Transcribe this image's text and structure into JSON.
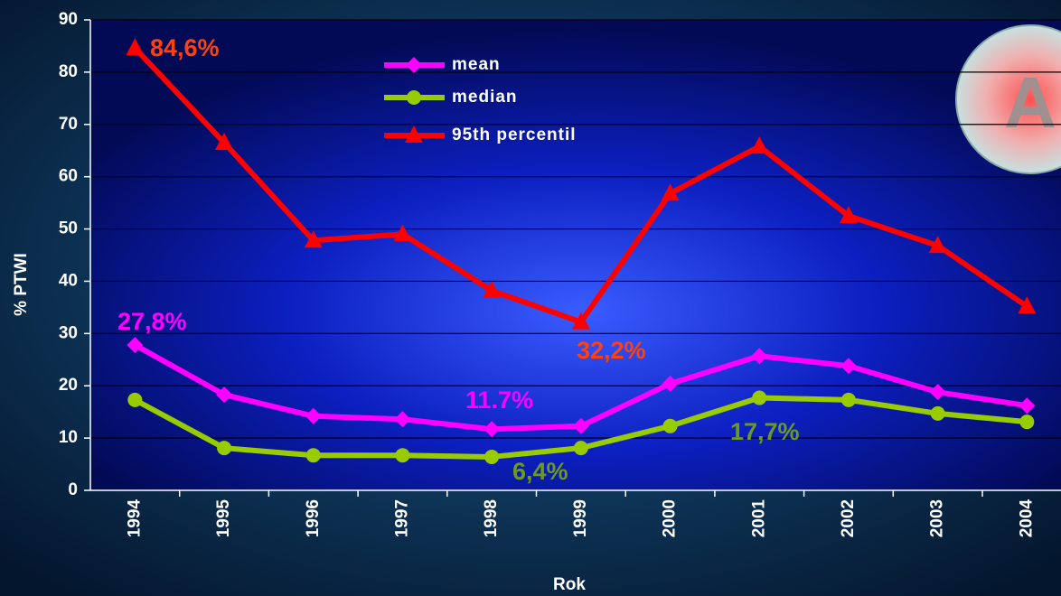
{
  "chart_data": {
    "type": "line",
    "categories": [
      "1994",
      "1995",
      "1996",
      "1997",
      "1998",
      "1999",
      "2000",
      "2001",
      "2002",
      "2003",
      "2004"
    ],
    "series": [
      {
        "name": "mean",
        "color": "#ff00ff",
        "marker": "diamond",
        "values": [
          27.8,
          18.3,
          14.2,
          13.6,
          11.7,
          12.3,
          20.4,
          25.7,
          23.8,
          18.8,
          16.2
        ]
      },
      {
        "name": "median",
        "color": "#99cc00",
        "marker": "circle",
        "values": [
          17.3,
          8.1,
          6.7,
          6.7,
          6.4,
          8.1,
          12.3,
          17.7,
          17.3,
          14.7,
          13.1
        ]
      },
      {
        "name": "95th percentil",
        "color": "#ff0000",
        "marker": "triangle",
        "values": [
          84.6,
          66.5,
          47.8,
          49.0,
          38.2,
          32.2,
          56.8,
          65.8,
          52.5,
          46.8,
          35.2
        ]
      }
    ],
    "ylim": [
      0,
      90
    ],
    "yticks": [
      0,
      10,
      20,
      30,
      40,
      50,
      60,
      70,
      80,
      90
    ],
    "grid": true,
    "xlabel": "Rok",
    "ylabel": "% PTWI",
    "annotations": [
      {
        "text": "84,6%",
        "color": "#ff4010"
      },
      {
        "text": "27,8%",
        "color": "#ff00ff"
      },
      {
        "text": "11.7%",
        "color": "#ff00ff"
      },
      {
        "text": "32,2%",
        "color": "#ff4010"
      },
      {
        "text": "6,4%",
        "color": "#6b9a1f"
      },
      {
        "text": "17,7%",
        "color": "#6b9a1f"
      }
    ]
  },
  "badge": "A"
}
